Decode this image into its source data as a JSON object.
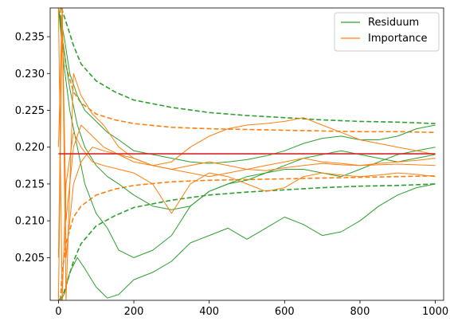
{
  "chart_data": {
    "type": "line",
    "xlim": [
      -22,
      1022
    ],
    "ylim": [
      0.1992,
      0.2389
    ],
    "x_ticks": [
      0,
      200,
      400,
      600,
      800,
      1000
    ],
    "y_ticks": [
      0.205,
      0.21,
      0.215,
      0.22,
      0.225,
      0.23,
      0.235
    ],
    "y_tick_labels": [
      "0.205",
      "0.210",
      "0.215",
      "0.220",
      "0.225",
      "0.230",
      "0.235"
    ],
    "legend": {
      "placement": "top-right",
      "entries": [
        {
          "name": "Residuum",
          "color": "#2ca02c"
        },
        {
          "name": "Importance",
          "color": "#ff7f0e"
        }
      ]
    },
    "reference_line": {
      "y": 0.2191,
      "color": "#d62728"
    },
    "colors": {
      "residuum": "#2ca02c",
      "importance": "#ff7f0e",
      "reference": "#d62728"
    },
    "bounds": [
      {
        "series": "Residuum",
        "side": "upper",
        "style": "dashed",
        "x": [
          8,
          20,
          40,
          60,
          100,
          150,
          200,
          300,
          400,
          500,
          600,
          700,
          800,
          900,
          1000
        ],
        "y": [
          0.2389,
          0.237,
          0.2338,
          0.2313,
          0.229,
          0.2275,
          0.2264,
          0.2254,
          0.2247,
          0.2243,
          0.224,
          0.2237,
          0.2235,
          0.2234,
          0.2232
        ]
      },
      {
        "series": "Residuum",
        "side": "lower",
        "style": "dashed",
        "x": [
          8,
          20,
          40,
          60,
          100,
          150,
          200,
          300,
          400,
          500,
          600,
          700,
          800,
          900,
          1000
        ],
        "y": [
          0.1992,
          0.2012,
          0.2045,
          0.2069,
          0.2093,
          0.2107,
          0.2118,
          0.2128,
          0.2135,
          0.2139,
          0.2142,
          0.2145,
          0.2147,
          0.2148,
          0.215
        ]
      },
      {
        "series": "Importance",
        "side": "upper",
        "style": "dashed",
        "x": [
          5,
          10,
          20,
          40,
          60,
          100,
          150,
          200,
          300,
          400,
          500,
          600,
          700,
          800,
          900,
          1000
        ],
        "y": [
          0.2389,
          0.235,
          0.231,
          0.2275,
          0.226,
          0.2245,
          0.2237,
          0.2232,
          0.2227,
          0.2225,
          0.2224,
          0.2223,
          0.2222,
          0.2221,
          0.2221,
          0.222
        ]
      },
      {
        "series": "Importance",
        "side": "lower",
        "style": "dashed",
        "x": [
          5,
          10,
          20,
          40,
          60,
          100,
          150,
          200,
          300,
          400,
          500,
          600,
          700,
          800,
          900,
          1000
        ],
        "y": [
          0.1992,
          0.203,
          0.207,
          0.2105,
          0.212,
          0.2135,
          0.2143,
          0.2148,
          0.2153,
          0.2155,
          0.2156,
          0.2157,
          0.2158,
          0.2159,
          0.216,
          0.2161
        ]
      }
    ],
    "series": [
      {
        "name": "Residuum",
        "color": "#2ca02c",
        "x": [
          0,
          15,
          30,
          50,
          70,
          100,
          130,
          160,
          200,
          250,
          300,
          350,
          400,
          450,
          500,
          550,
          600,
          650,
          700,
          750,
          800,
          850,
          900,
          950,
          1000
        ],
        "y": [
          0.2389,
          0.235,
          0.23,
          0.227,
          0.225,
          0.2235,
          0.222,
          0.221,
          0.2195,
          0.219,
          0.2185,
          0.218,
          0.2178,
          0.218,
          0.2183,
          0.2188,
          0.2195,
          0.2205,
          0.2212,
          0.2215,
          0.221,
          0.221,
          0.2215,
          0.2225,
          0.223
        ]
      },
      {
        "name": "Residuum",
        "color": "#2ca02c",
        "x": [
          0,
          15,
          30,
          50,
          70,
          100,
          130,
          160,
          200,
          250,
          300,
          350,
          400,
          450,
          500,
          550,
          600,
          650,
          700,
          750,
          800,
          850,
          900,
          950,
          1000
        ],
        "y": [
          0.2389,
          0.233,
          0.228,
          0.223,
          0.22,
          0.2175,
          0.216,
          0.215,
          0.2135,
          0.212,
          0.2115,
          0.212,
          0.214,
          0.215,
          0.2155,
          0.2165,
          0.2175,
          0.2185,
          0.219,
          0.2195,
          0.219,
          0.2185,
          0.218,
          0.2185,
          0.219
        ]
      },
      {
        "name": "Residuum",
        "color": "#2ca02c",
        "x": [
          0,
          15,
          30,
          50,
          70,
          100,
          130,
          160,
          200,
          250,
          300,
          350,
          400,
          450,
          500,
          550,
          600,
          650,
          700,
          750,
          800,
          850,
          900,
          950,
          1000
        ],
        "y": [
          0.1992,
          0.2,
          0.203,
          0.205,
          0.2035,
          0.201,
          0.1995,
          0.2,
          0.202,
          0.203,
          0.2045,
          0.207,
          0.208,
          0.209,
          0.2075,
          0.209,
          0.2105,
          0.2095,
          0.208,
          0.2085,
          0.21,
          0.212,
          0.2135,
          0.2145,
          0.215
        ]
      },
      {
        "name": "Residuum",
        "color": "#2ca02c",
        "x": [
          0,
          15,
          30,
          50,
          70,
          100,
          130,
          160,
          200,
          250,
          300,
          350,
          400,
          450,
          500,
          550,
          600,
          650,
          700,
          750,
          800,
          850,
          900,
          950,
          1000
        ],
        "y": [
          0.2389,
          0.231,
          0.225,
          0.22,
          0.215,
          0.211,
          0.209,
          0.206,
          0.205,
          0.206,
          0.208,
          0.212,
          0.214,
          0.215,
          0.216,
          0.2165,
          0.217,
          0.217,
          0.2165,
          0.216,
          0.217,
          0.218,
          0.219,
          0.2195,
          0.22
        ]
      },
      {
        "name": "Importance",
        "color": "#ff7f0e",
        "x": [
          0,
          10,
          20,
          40,
          60,
          90,
          120,
          160,
          200,
          250,
          300,
          350,
          400,
          450,
          500,
          550,
          600,
          650,
          700,
          750,
          800,
          850,
          900,
          950,
          1000
        ],
        "y": [
          0.22,
          0.2389,
          0.1992,
          0.23,
          0.227,
          0.2245,
          0.223,
          0.22,
          0.2185,
          0.2175,
          0.218,
          0.22,
          0.2215,
          0.2225,
          0.223,
          0.2232,
          0.2235,
          0.224,
          0.223,
          0.222,
          0.221,
          0.2205,
          0.22,
          0.2195,
          0.219
        ]
      },
      {
        "name": "Importance",
        "color": "#ff7f0e",
        "x": [
          0,
          10,
          20,
          40,
          60,
          90,
          120,
          160,
          200,
          250,
          300,
          350,
          400,
          450,
          500,
          550,
          600,
          650,
          700,
          750,
          800,
          850,
          900,
          950,
          1000
        ],
        "y": [
          0.205,
          0.2389,
          0.21,
          0.22,
          0.223,
          0.2215,
          0.22,
          0.219,
          0.218,
          0.2175,
          0.217,
          0.2165,
          0.216,
          0.2165,
          0.217,
          0.2175,
          0.218,
          0.2185,
          0.218,
          0.2178,
          0.2175,
          0.2176,
          0.2177,
          0.2176,
          0.2175
        ]
      },
      {
        "name": "Importance",
        "color": "#ff7f0e",
        "x": [
          0,
          10,
          20,
          40,
          60,
          90,
          120,
          160,
          200,
          250,
          300,
          350,
          400,
          450,
          500,
          550,
          600,
          650,
          700,
          750,
          800,
          850,
          900,
          950,
          1000
        ],
        "y": [
          0.2389,
          0.1992,
          0.215,
          0.222,
          0.22,
          0.218,
          0.2175,
          0.217,
          0.2165,
          0.215,
          0.211,
          0.215,
          0.2165,
          0.216,
          0.215,
          0.214,
          0.2145,
          0.216,
          0.2165,
          0.2162,
          0.216,
          0.2162,
          0.2165,
          0.2163,
          0.216
        ]
      },
      {
        "name": "Importance",
        "color": "#ff7f0e",
        "x": [
          0,
          10,
          20,
          40,
          60,
          90,
          120,
          160,
          200,
          250,
          300,
          350,
          400,
          450,
          500,
          550,
          600,
          650,
          700,
          750,
          800,
          850,
          900,
          950,
          1000
        ],
        "y": [
          0.1992,
          0.2389,
          0.205,
          0.215,
          0.218,
          0.22,
          0.2195,
          0.219,
          0.2185,
          0.2175,
          0.217,
          0.2175,
          0.218,
          0.2175,
          0.217,
          0.2168,
          0.2172,
          0.2175,
          0.2178,
          0.2176,
          0.2175,
          0.2178,
          0.218,
          0.2182,
          0.2185
        ]
      }
    ]
  }
}
